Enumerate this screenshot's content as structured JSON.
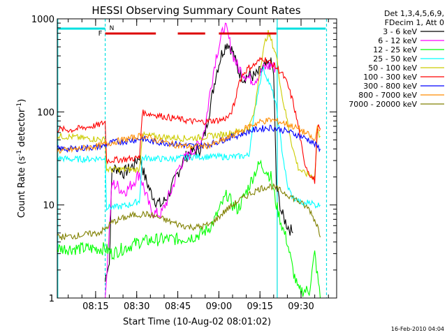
{
  "chart_data": {
    "type": "line",
    "title": "HESSI Observing Summary Count Rates",
    "xlabel": "Start Time (10-Aug-02 08:01:02)",
    "ylabel_main": "Count Rate (s",
    "ylabel_sup1": "-1",
    "ylabel_mid": " detector",
    "ylabel_sup2": "-1",
    "ylabel_end": ")",
    "footer": "16-Feb-2010 04:04",
    "y_scale": "log",
    "ylim": [
      1,
      1000
    ],
    "xlim_minutes": [
      0,
      102
    ],
    "xticks": [
      {
        "label": "08:15",
        "minute": 14
      },
      {
        "label": "08:30",
        "minute": 29
      },
      {
        "label": "08:45",
        "minute": 44
      },
      {
        "label": "09:00",
        "minute": 59
      },
      {
        "label": "09:15",
        "minute": 74
      },
      {
        "label": "09:30",
        "minute": 89
      }
    ],
    "yticks": [
      {
        "label": "1",
        "value": 1
      },
      {
        "label": "10",
        "value": 10
      },
      {
        "label": "100",
        "value": 100
      },
      {
        "label": "1000",
        "value": 1000
      }
    ],
    "legend": {
      "header": [
        "Det 1,3,4,5,6,9,",
        "FDecim 1, Att 0"
      ],
      "placement": "right"
    },
    "flags": {
      "label_F": "F",
      "label_N": "N",
      "N_bars": [
        [
          0,
          17.5
        ],
        [
          80,
          98
        ]
      ],
      "F_bars": [
        [
          17.5,
          36
        ],
        [
          44,
          54
        ],
        [
          59,
          80
        ]
      ]
    },
    "cyan_vertical_minutes": [
      0.2,
      17.5,
      80.3,
      98.3
    ],
    "series": [
      {
        "name": "3 - 6 keV",
        "color": "#000000",
        "points": [
          [
            17.5,
            1.5
          ],
          [
            18,
            2.0
          ],
          [
            19,
            2.3
          ],
          [
            20,
            24
          ],
          [
            22,
            25
          ],
          [
            24,
            22
          ],
          [
            26,
            24
          ],
          [
            28,
            27
          ],
          [
            30,
            34
          ],
          [
            32,
            20
          ],
          [
            34,
            14
          ],
          [
            36,
            11
          ],
          [
            38,
            10
          ],
          [
            40,
            12
          ],
          [
            42,
            16
          ],
          [
            44,
            22
          ],
          [
            46,
            30
          ],
          [
            48,
            36
          ],
          [
            50,
            38
          ],
          [
            52,
            40
          ],
          [
            54,
            60
          ],
          [
            56,
            120
          ],
          [
            58,
            260
          ],
          [
            60,
            420
          ],
          [
            62,
            560
          ],
          [
            64,
            450
          ],
          [
            66,
            280
          ],
          [
            68,
            230
          ],
          [
            70,
            250
          ],
          [
            72,
            240
          ],
          [
            74,
            270
          ],
          [
            76,
            310
          ],
          [
            78,
            330
          ],
          [
            79,
            260
          ],
          [
            80,
            16
          ],
          [
            82,
            8
          ],
          [
            84,
            6
          ],
          [
            86,
            5
          ]
        ]
      },
      {
        "name": "6 - 12 keV",
        "color": "#ff00ff",
        "points": [
          [
            17.5,
            1.0
          ],
          [
            20,
            17
          ],
          [
            22,
            16
          ],
          [
            24,
            14
          ],
          [
            26,
            15
          ],
          [
            28,
            18
          ],
          [
            30,
            22
          ],
          [
            32,
            14
          ],
          [
            34,
            9
          ],
          [
            36,
            8
          ],
          [
            38,
            8
          ],
          [
            40,
            11
          ],
          [
            42,
            15
          ],
          [
            44,
            24
          ],
          [
            46,
            30
          ],
          [
            48,
            34
          ],
          [
            50,
            40
          ],
          [
            52,
            45
          ],
          [
            54,
            70
          ],
          [
            56,
            180
          ],
          [
            58,
            400
          ],
          [
            60,
            650
          ],
          [
            61,
            850
          ],
          [
            62,
            720
          ],
          [
            64,
            420
          ],
          [
            66,
            300
          ],
          [
            68,
            260
          ],
          [
            70,
            230
          ],
          [
            72,
            220
          ],
          [
            74,
            260
          ],
          [
            76,
            300
          ],
          [
            78,
            320
          ],
          [
            80,
            290
          ]
        ]
      },
      {
        "name": "12 - 25 keV",
        "color": "#00ff00",
        "points": [
          [
            0,
            3.4
          ],
          [
            17.5,
            3.4
          ],
          [
            20,
            3.0
          ],
          [
            22,
            3.2
          ],
          [
            26,
            3.6
          ],
          [
            30,
            4.0
          ],
          [
            35,
            4.2
          ],
          [
            40,
            4.3
          ],
          [
            45,
            4.3
          ],
          [
            50,
            4.6
          ],
          [
            53,
            5.0
          ],
          [
            55,
            5.5
          ],
          [
            57,
            6.5
          ],
          [
            60,
            10
          ],
          [
            62,
            13
          ],
          [
            64,
            10
          ],
          [
            66,
            9
          ],
          [
            68,
            12
          ],
          [
            70,
            16
          ],
          [
            72,
            22
          ],
          [
            74,
            28
          ],
          [
            76,
            24
          ],
          [
            78,
            20
          ],
          [
            80,
            10
          ],
          [
            82,
            6
          ],
          [
            84,
            4
          ],
          [
            86,
            2
          ],
          [
            88,
            1.2
          ],
          [
            92,
            1.2
          ],
          [
            94,
            3
          ],
          [
            96,
            1.0
          ]
        ]
      },
      {
        "name": "25 - 50 keV",
        "color": "#00ffff",
        "points": [
          [
            0,
            32
          ],
          [
            5,
            31
          ],
          [
            10,
            31
          ],
          [
            17.5,
            32
          ],
          [
            18,
            9.5
          ],
          [
            22,
            9.5
          ],
          [
            26,
            10
          ],
          [
            30,
            11
          ],
          [
            31,
            32
          ],
          [
            40,
            31
          ],
          [
            50,
            33
          ],
          [
            55,
            33
          ],
          [
            60,
            33
          ],
          [
            65,
            33
          ],
          [
            70,
            34
          ],
          [
            71,
            60
          ],
          [
            73,
            150
          ],
          [
            75,
            300
          ],
          [
            77,
            220
          ],
          [
            79,
            150
          ],
          [
            80,
            110
          ],
          [
            82,
            40
          ],
          [
            84,
            16
          ],
          [
            86,
            12
          ],
          [
            88,
            11
          ],
          [
            90,
            10
          ],
          [
            92,
            11
          ],
          [
            94,
            10
          ],
          [
            96,
            10
          ]
        ]
      },
      {
        "name": "50 - 100 keV",
        "color": "#cccc00",
        "points": [
          [
            0,
            55
          ],
          [
            5,
            54
          ],
          [
            10,
            52
          ],
          [
            15,
            51
          ],
          [
            17.5,
            50
          ],
          [
            18,
            24
          ],
          [
            30,
            24
          ],
          [
            31,
            56
          ],
          [
            38,
            54
          ],
          [
            46,
            52
          ],
          [
            52,
            53
          ],
          [
            56,
            55
          ],
          [
            60,
            57
          ],
          [
            64,
            60
          ],
          [
            66,
            62
          ],
          [
            70,
            68
          ],
          [
            72,
            100
          ],
          [
            74,
            300
          ],
          [
            76,
            580
          ],
          [
            77,
            700
          ],
          [
            78,
            600
          ],
          [
            80,
            400
          ],
          [
            82,
            150
          ],
          [
            84,
            80
          ],
          [
            86,
            40
          ],
          [
            88,
            25
          ],
          [
            90,
            22
          ],
          [
            92,
            21
          ],
          [
            94,
            20
          ],
          [
            95,
            60
          ],
          [
            96,
            55
          ]
        ]
      },
      {
        "name": "100 - 300 keV",
        "color": "#ff0000",
        "points": [
          [
            0,
            65
          ],
          [
            5,
            64
          ],
          [
            10,
            68
          ],
          [
            15,
            72
          ],
          [
            17.5,
            78
          ],
          [
            18,
            30
          ],
          [
            30,
            32
          ],
          [
            31,
            98
          ],
          [
            36,
            93
          ],
          [
            40,
            88
          ],
          [
            44,
            84
          ],
          [
            48,
            80
          ],
          [
            52,
            78
          ],
          [
            56,
            80
          ],
          [
            60,
            82
          ],
          [
            63,
            90
          ],
          [
            65,
            130
          ],
          [
            66,
            200
          ],
          [
            68,
            260
          ],
          [
            70,
            300
          ],
          [
            72,
            320
          ],
          [
            74,
            360
          ],
          [
            75,
            380
          ],
          [
            77,
            350
          ],
          [
            79,
            320
          ],
          [
            80,
            300
          ],
          [
            82,
            260
          ],
          [
            84,
            200
          ],
          [
            86,
            130
          ],
          [
            88,
            70
          ],
          [
            90,
            30
          ],
          [
            92,
            22
          ],
          [
            94,
            18
          ],
          [
            95,
            70
          ],
          [
            96,
            65
          ]
        ]
      },
      {
        "name": "300 - 800 keV",
        "color": "#0000ff",
        "points": [
          [
            0,
            40
          ],
          [
            5,
            40
          ],
          [
            10,
            41
          ],
          [
            15,
            42
          ],
          [
            17.5,
            44
          ],
          [
            20,
            47
          ],
          [
            24,
            48
          ],
          [
            28,
            50
          ],
          [
            31,
            52
          ],
          [
            34,
            48
          ],
          [
            38,
            47
          ],
          [
            42,
            46
          ],
          [
            46,
            44
          ],
          [
            50,
            43
          ],
          [
            54,
            44
          ],
          [
            58,
            47
          ],
          [
            62,
            52
          ],
          [
            66,
            56
          ],
          [
            70,
            62
          ],
          [
            74,
            66
          ],
          [
            78,
            68
          ],
          [
            80,
            66
          ],
          [
            84,
            62
          ],
          [
            88,
            56
          ],
          [
            92,
            50
          ],
          [
            96,
            40
          ]
        ]
      },
      {
        "name": "800 - 7000 keV",
        "color": "#ff8c00",
        "points": [
          [
            0,
            38
          ],
          [
            5,
            39
          ],
          [
            10,
            41
          ],
          [
            15,
            43
          ],
          [
            17.5,
            45
          ],
          [
            20,
            47
          ],
          [
            24,
            50
          ],
          [
            28,
            53
          ],
          [
            31,
            56
          ],
          [
            34,
            52
          ],
          [
            38,
            48
          ],
          [
            42,
            45
          ],
          [
            46,
            43
          ],
          [
            50,
            42
          ],
          [
            54,
            43
          ],
          [
            58,
            46
          ],
          [
            62,
            52
          ],
          [
            66,
            60
          ],
          [
            70,
            70
          ],
          [
            74,
            78
          ],
          [
            78,
            82
          ],
          [
            80,
            80
          ],
          [
            84,
            74
          ],
          [
            88,
            66
          ],
          [
            92,
            56
          ],
          [
            94,
            48
          ],
          [
            95,
            70
          ],
          [
            96,
            65
          ]
        ]
      },
      {
        "name": "7000 - 20000 keV",
        "color": "#808000",
        "points": [
          [
            0,
            4.5
          ],
          [
            5,
            4.6
          ],
          [
            10,
            4.8
          ],
          [
            15,
            5.0
          ],
          [
            17.5,
            5.5
          ],
          [
            20,
            6.5
          ],
          [
            24,
            7.2
          ],
          [
            28,
            7.8
          ],
          [
            32,
            8.0
          ],
          [
            36,
            7.5
          ],
          [
            40,
            6.8
          ],
          [
            44,
            6.2
          ],
          [
            48,
            5.8
          ],
          [
            52,
            5.8
          ],
          [
            56,
            6.2
          ],
          [
            58,
            7.0
          ],
          [
            62,
            9.0
          ],
          [
            66,
            11
          ],
          [
            70,
            13
          ],
          [
            74,
            15
          ],
          [
            78,
            16
          ],
          [
            80,
            15
          ],
          [
            84,
            13
          ],
          [
            88,
            11
          ],
          [
            92,
            9
          ],
          [
            95,
            6
          ],
          [
            96,
            4.5
          ]
        ]
      }
    ]
  }
}
